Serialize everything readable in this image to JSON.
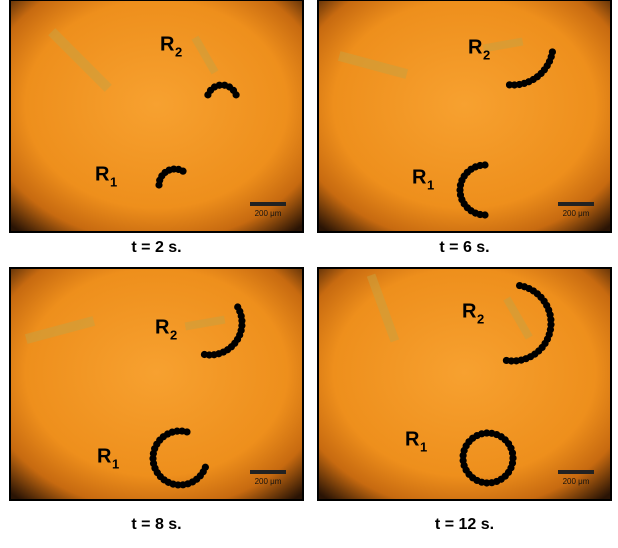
{
  "panels": [
    {
      "caption": "t = 2 s.",
      "labels": [
        {
          "main": "R",
          "sub": "2"
        },
        {
          "main": "R",
          "sub": "1"
        }
      ],
      "scale_bar": "200 μm"
    },
    {
      "caption": "t = 6 s.",
      "labels": [
        {
          "main": "R",
          "sub": "2"
        },
        {
          "main": "R",
          "sub": "1"
        }
      ],
      "scale_bar": "200 μm"
    },
    {
      "caption": "t = 8 s.",
      "labels": [
        {
          "main": "R",
          "sub": "2"
        },
        {
          "main": "R",
          "sub": "1"
        }
      ],
      "scale_bar": "200 μm"
    },
    {
      "caption": "t = 12 s.",
      "labels": [
        {
          "main": "R",
          "sub": "2"
        },
        {
          "main": "R",
          "sub": "1"
        }
      ],
      "scale_bar": "200 μm"
    }
  ]
}
